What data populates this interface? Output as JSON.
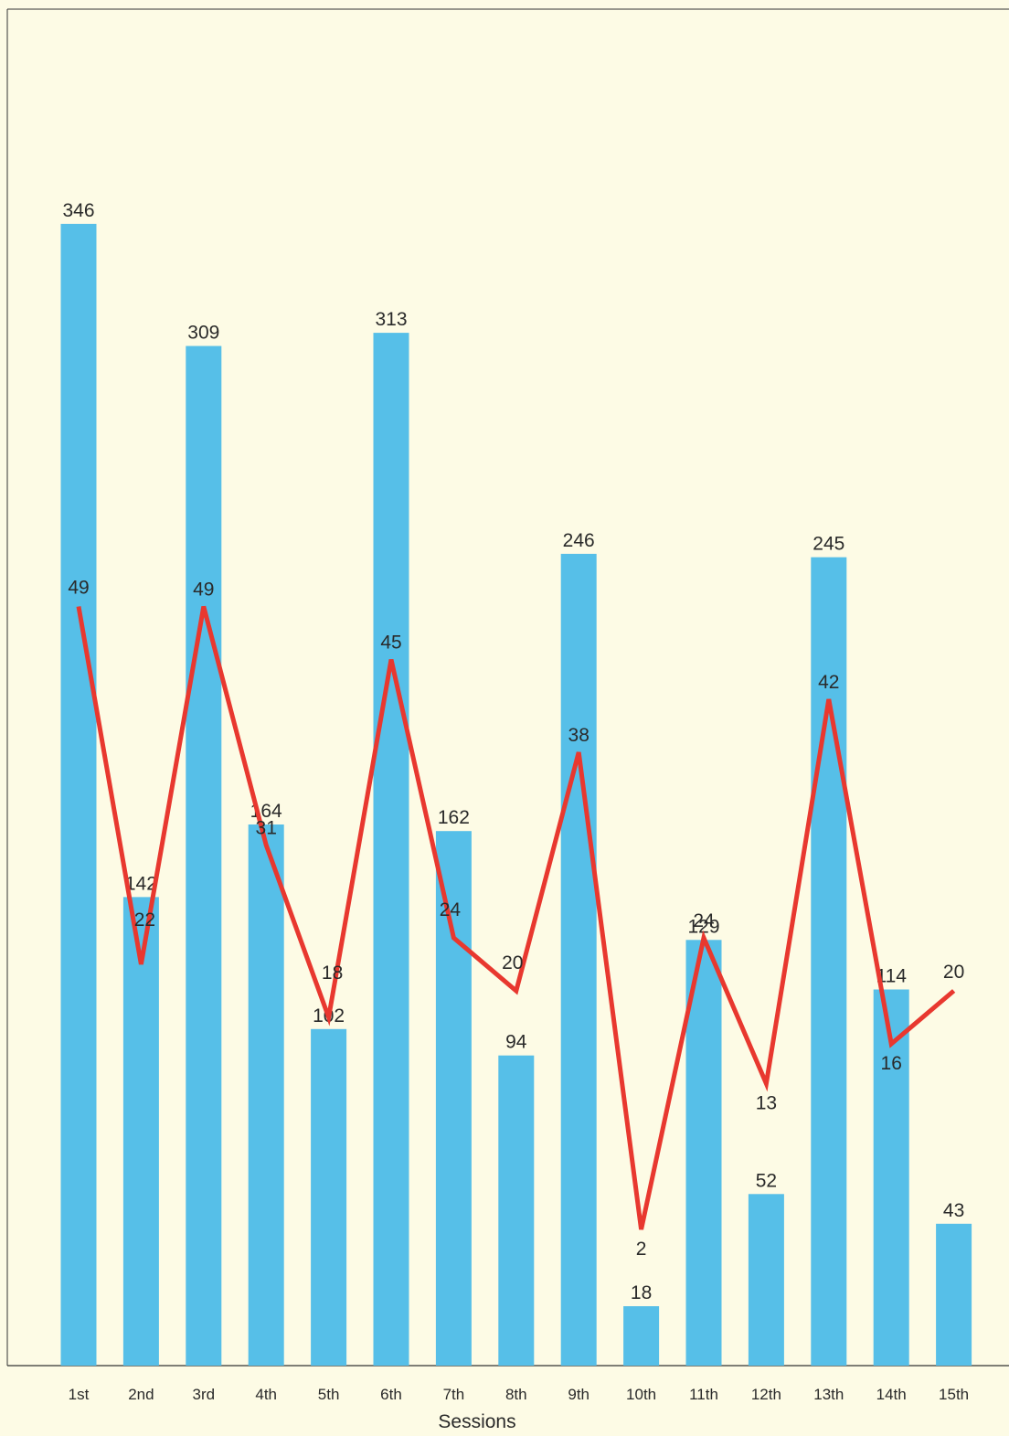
{
  "colors": {
    "background": "#fdfbe5",
    "bar": "#56bfe8",
    "line": "#e8382f",
    "axis": "#333333",
    "text": "#2a2a2a"
  },
  "chart_data": {
    "type": "bar",
    "categories": [
      "1st",
      "2nd",
      "3rd",
      "4th",
      "5th",
      "6th",
      "7th",
      "8th",
      "9th",
      "10th",
      "11th",
      "12th",
      "13th",
      "14th",
      "15th"
    ],
    "series": [
      {
        "type": "bar",
        "values": [
          346,
          142,
          309,
          164,
          102,
          313,
          162,
          94,
          246,
          18,
          129,
          52,
          245,
          114,
          43
        ]
      },
      {
        "type": "line",
        "values": [
          49,
          22,
          49,
          31,
          18,
          45,
          24,
          20,
          38,
          2,
          24,
          13,
          42,
          16,
          20
        ]
      }
    ],
    "xlabel": "Sessions",
    "ylabel": "",
    "grid": false,
    "legend": "none"
  }
}
